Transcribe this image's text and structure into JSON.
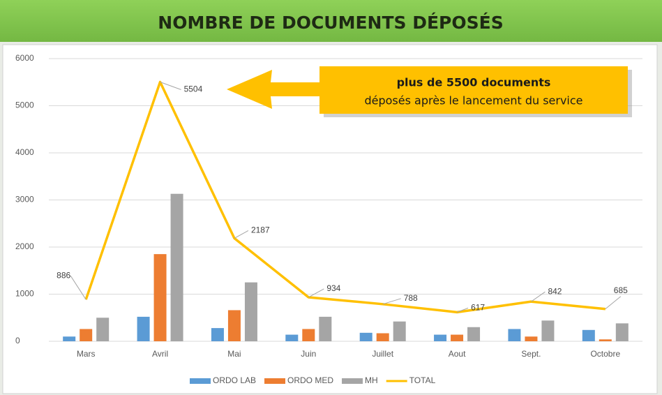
{
  "chart_data": {
    "type": "bar",
    "title": "NOMBRE DE DOCUMENTS DÉPOSÉS",
    "categories": [
      "Mars",
      "Avril",
      "Mai",
      "Juin",
      "Juillet",
      "Aout",
      "Sept.",
      "Octobre"
    ],
    "series": [
      {
        "name": "ORDO LAB",
        "color": "#5b9bd5",
        "values": [
          100,
          520,
          280,
          140,
          180,
          140,
          260,
          240
        ]
      },
      {
        "name": "ORDO MED",
        "color": "#ed7d31",
        "values": [
          260,
          1850,
          660,
          260,
          170,
          140,
          100,
          40
        ]
      },
      {
        "name": "MH",
        "color": "#a5a5a5",
        "values": [
          500,
          3130,
          1250,
          520,
          420,
          300,
          440,
          380
        ]
      },
      {
        "name": "TOTAL",
        "color": "#ffc000",
        "type": "line",
        "values": [
          886,
          5504,
          2187,
          934,
          788,
          617,
          842,
          685
        ]
      }
    ],
    "ylim": [
      0,
      6000
    ],
    "yticks": [
      0,
      1000,
      2000,
      3000,
      4000,
      5000,
      6000
    ],
    "grid": true,
    "legend": "bottom",
    "annotation": {
      "title": "plus de 5500 documents",
      "text": "déposés après le lancement du service"
    }
  }
}
